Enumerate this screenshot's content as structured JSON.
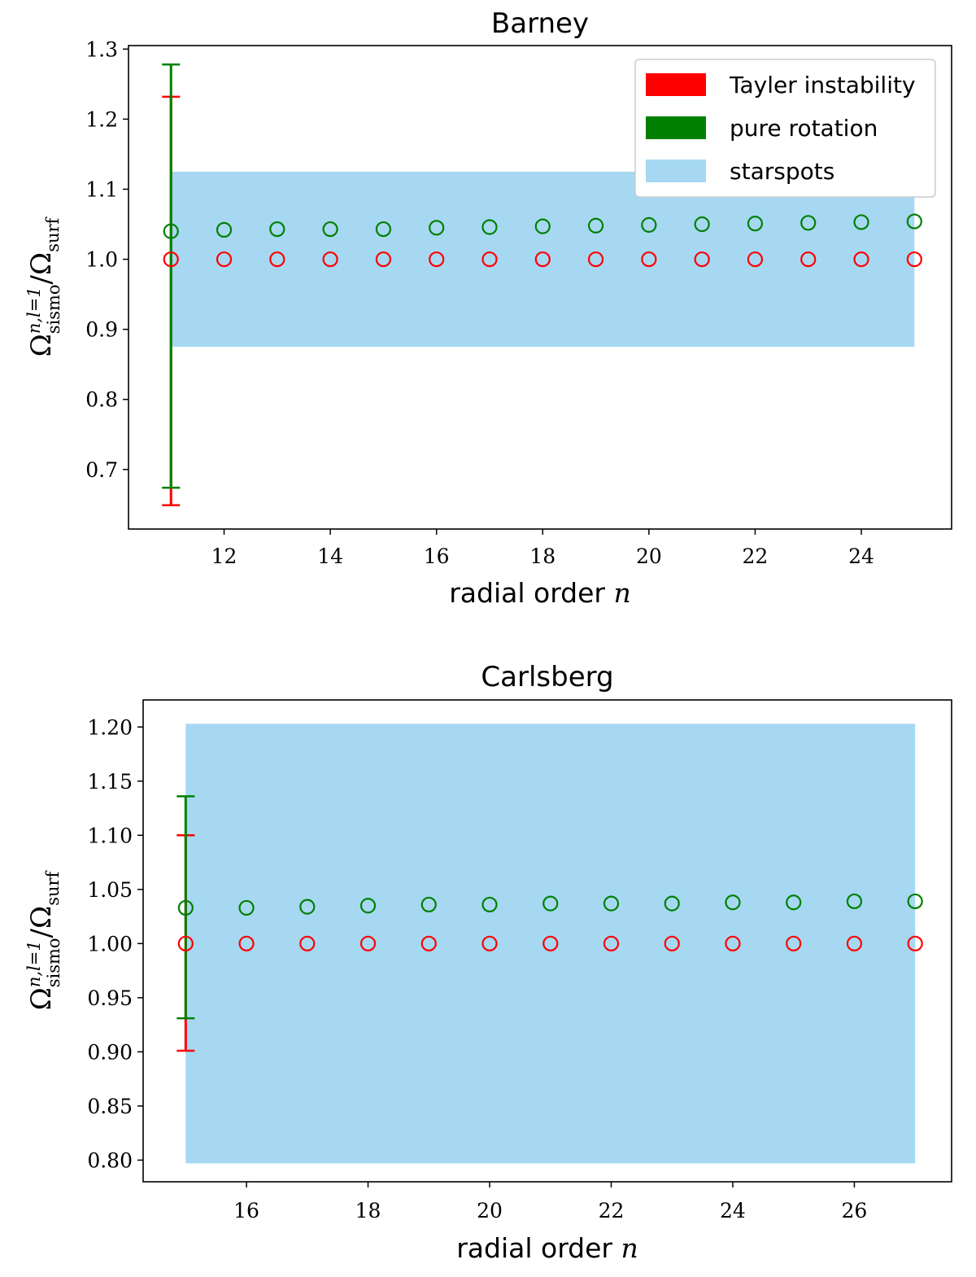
{
  "colors": {
    "tayler": "#ff0000",
    "rotation": "#008000",
    "starspots": "#a6d8f2",
    "axis": "#000000"
  },
  "legend": {
    "items": [
      {
        "label": "Tayler instability",
        "color": "#ff0000"
      },
      {
        "label": "pure rotation",
        "color": "#008000"
      },
      {
        "label": "starspots",
        "color": "#a6d8f2"
      }
    ]
  },
  "ylabel": {
    "base": "Ω",
    "sup": "n,l=1",
    "sub": "sismo",
    "slash": "/Ω",
    "sub2": "surf"
  },
  "chart_data": [
    {
      "type": "scatter",
      "title": "Barney",
      "xlabel": "radial order ",
      "xlabel_var": "n",
      "xlim": [
        10.2,
        25.7
      ],
      "ylim": [
        0.615,
        1.305
      ],
      "xticks": [
        "12",
        "14",
        "16",
        "18",
        "20",
        "22",
        "24"
      ],
      "xtick_values": [
        12,
        14,
        16,
        18,
        20,
        22,
        24
      ],
      "yticks": [
        "0.7",
        "0.8",
        "0.9",
        "1.0",
        "1.1",
        "1.2",
        "1.3"
      ],
      "ytick_values": [
        0.7,
        0.8,
        0.9,
        1.0,
        1.1,
        1.2,
        1.3
      ],
      "legend_shown": true,
      "starspots": {
        "x": [
          11,
          25
        ],
        "y": [
          0.875,
          1.125
        ]
      },
      "series": [
        {
          "name": "pure rotation",
          "x": [
            11,
            12,
            13,
            14,
            15,
            16,
            17,
            18,
            19,
            20,
            21,
            22,
            23,
            24,
            25
          ],
          "values": [
            1.04,
            1.042,
            1.043,
            1.043,
            1.043,
            1.045,
            1.046,
            1.047,
            1.048,
            1.049,
            1.05,
            1.051,
            1.052,
            1.053,
            1.054
          ],
          "error_at_first": [
            0.674,
            1.278
          ]
        },
        {
          "name": "Tayler instability",
          "x": [
            11,
            12,
            13,
            14,
            15,
            16,
            17,
            18,
            19,
            20,
            21,
            22,
            23,
            24,
            25
          ],
          "values": [
            1.0,
            1.0,
            1.0,
            1.0,
            1.0,
            1.0,
            1.0,
            1.0,
            1.0,
            1.0,
            1.0,
            1.0,
            1.0,
            1.0,
            1.0
          ],
          "error_at_first": [
            0.649,
            1.232
          ]
        }
      ]
    },
    {
      "type": "scatter",
      "title": "Carlsberg",
      "xlabel": "radial order ",
      "xlabel_var": "n",
      "xlim": [
        14.3,
        27.6
      ],
      "ylim": [
        0.78,
        1.225
      ],
      "xticks": [
        "16",
        "18",
        "20",
        "22",
        "24",
        "26"
      ],
      "xtick_values": [
        16,
        18,
        20,
        22,
        24,
        26
      ],
      "yticks": [
        "0.80",
        "0.85",
        "0.90",
        "0.95",
        "1.00",
        "1.05",
        "1.10",
        "1.15",
        "1.20"
      ],
      "ytick_values": [
        0.8,
        0.85,
        0.9,
        0.95,
        1.0,
        1.05,
        1.1,
        1.15,
        1.2
      ],
      "legend_shown": false,
      "starspots": {
        "x": [
          15,
          27
        ],
        "y": [
          0.797,
          1.203
        ]
      },
      "series": [
        {
          "name": "pure rotation",
          "x": [
            15,
            16,
            17,
            18,
            19,
            20,
            21,
            22,
            23,
            24,
            25,
            26,
            27
          ],
          "values": [
            1.033,
            1.033,
            1.034,
            1.035,
            1.036,
            1.036,
            1.037,
            1.037,
            1.037,
            1.038,
            1.038,
            1.039,
            1.039
          ],
          "error_at_first": [
            0.931,
            1.136
          ]
        },
        {
          "name": "Tayler instability",
          "x": [
            15,
            16,
            17,
            18,
            19,
            20,
            21,
            22,
            23,
            24,
            25,
            26,
            27
          ],
          "values": [
            1.0,
            1.0,
            1.0,
            1.0,
            1.0,
            1.0,
            1.0,
            1.0,
            1.0,
            1.0,
            1.0,
            1.0,
            1.0
          ],
          "error_at_first": [
            0.901,
            1.1
          ]
        }
      ]
    }
  ]
}
